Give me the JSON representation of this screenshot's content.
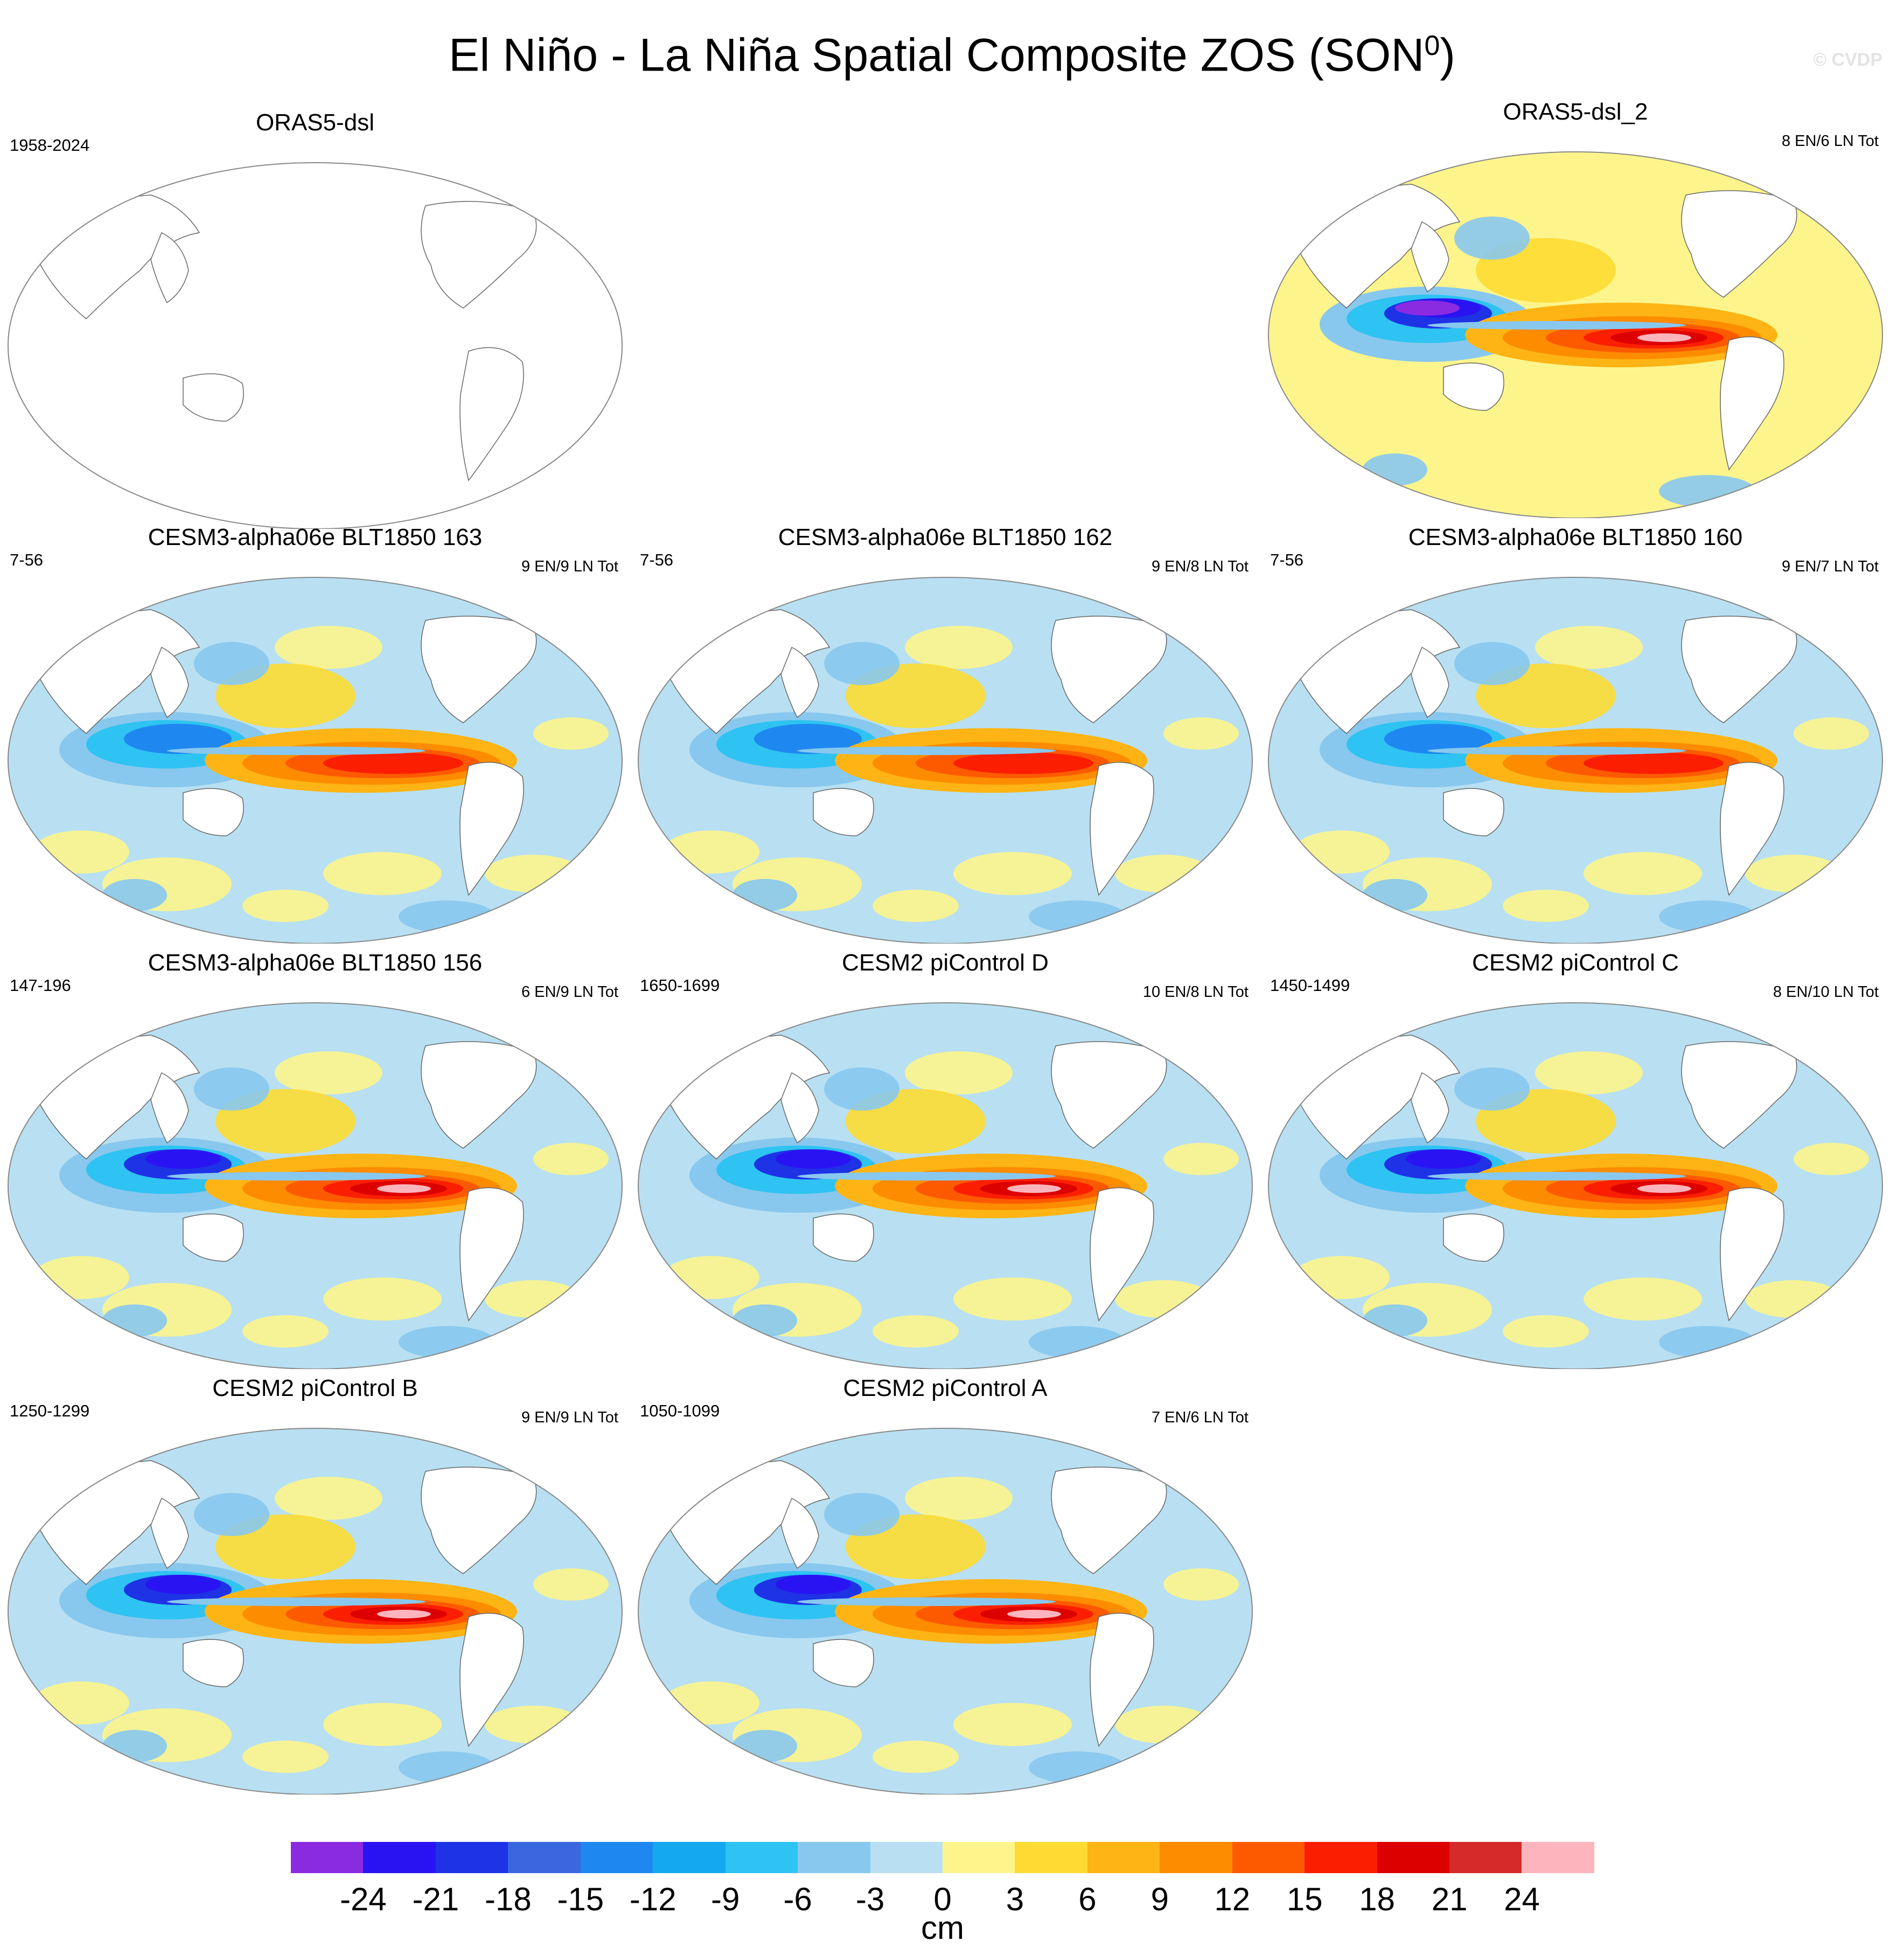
{
  "figure": {
    "title_main": "El Niño - La Niña Spatial Composite ZOS (SON",
    "title_sup": "0",
    "title_close": ")",
    "credit": "© CVDP"
  },
  "panels": [
    {
      "title": "ORAS5-dsl",
      "years": "1958-2024",
      "count": "",
      "pattern": "empty"
    },
    {
      "title": "ORAS5-dsl_2",
      "years": "",
      "count": "8 EN/6 LN Tot",
      "pattern": "obs"
    },
    {
      "title": "CESM3-alpha06e BLT1850 163",
      "years": "7-56",
      "count": "9 EN/9 LN Tot",
      "pattern": "model"
    },
    {
      "title": "CESM3-alpha06e BLT1850 162",
      "years": "7-56",
      "count": "9 EN/8 LN Tot",
      "pattern": "model"
    },
    {
      "title": "CESM3-alpha06e BLT1850 160",
      "years": "7-56",
      "count": "9 EN/7 LN Tot",
      "pattern": "model"
    },
    {
      "title": "CESM3-alpha06e BLT1850 156",
      "years": "147-196",
      "count": "6 EN/9 LN Tot",
      "pattern": "strong"
    },
    {
      "title": "CESM2 piControl D",
      "years": "1650-1699",
      "count": "10 EN/8 LN Tot",
      "pattern": "strong"
    },
    {
      "title": "CESM2 piControl C",
      "years": "1450-1499",
      "count": "8 EN/10 LN Tot",
      "pattern": "strong"
    },
    {
      "title": "CESM2 piControl B",
      "years": "1250-1299",
      "count": "9 EN/9 LN Tot",
      "pattern": "strong"
    },
    {
      "title": "CESM2 piControl A",
      "years": "1050-1099",
      "count": "7 EN/6 LN Tot",
      "pattern": "strong"
    }
  ],
  "colorbar": {
    "units": "cm",
    "labels": [
      "-24",
      "-21",
      "-18",
      "-15",
      "-12",
      "-9",
      "-6",
      "-3",
      "0",
      "3",
      "6",
      "9",
      "12",
      "15",
      "18",
      "21",
      "24"
    ],
    "colors": [
      "#8a2be2",
      "#2a13f3",
      "#1e32e6",
      "#3a66e0",
      "#1e88f0",
      "#14a8f0",
      "#2ec3f2",
      "#88c8ee",
      "#b8e0f2",
      "#fdf58c",
      "#fddb32",
      "#fdb414",
      "#fd8c00",
      "#fd5a00",
      "#fb1e00",
      "#dd0000",
      "#d42a2a",
      "#fdb4bc"
    ]
  }
}
